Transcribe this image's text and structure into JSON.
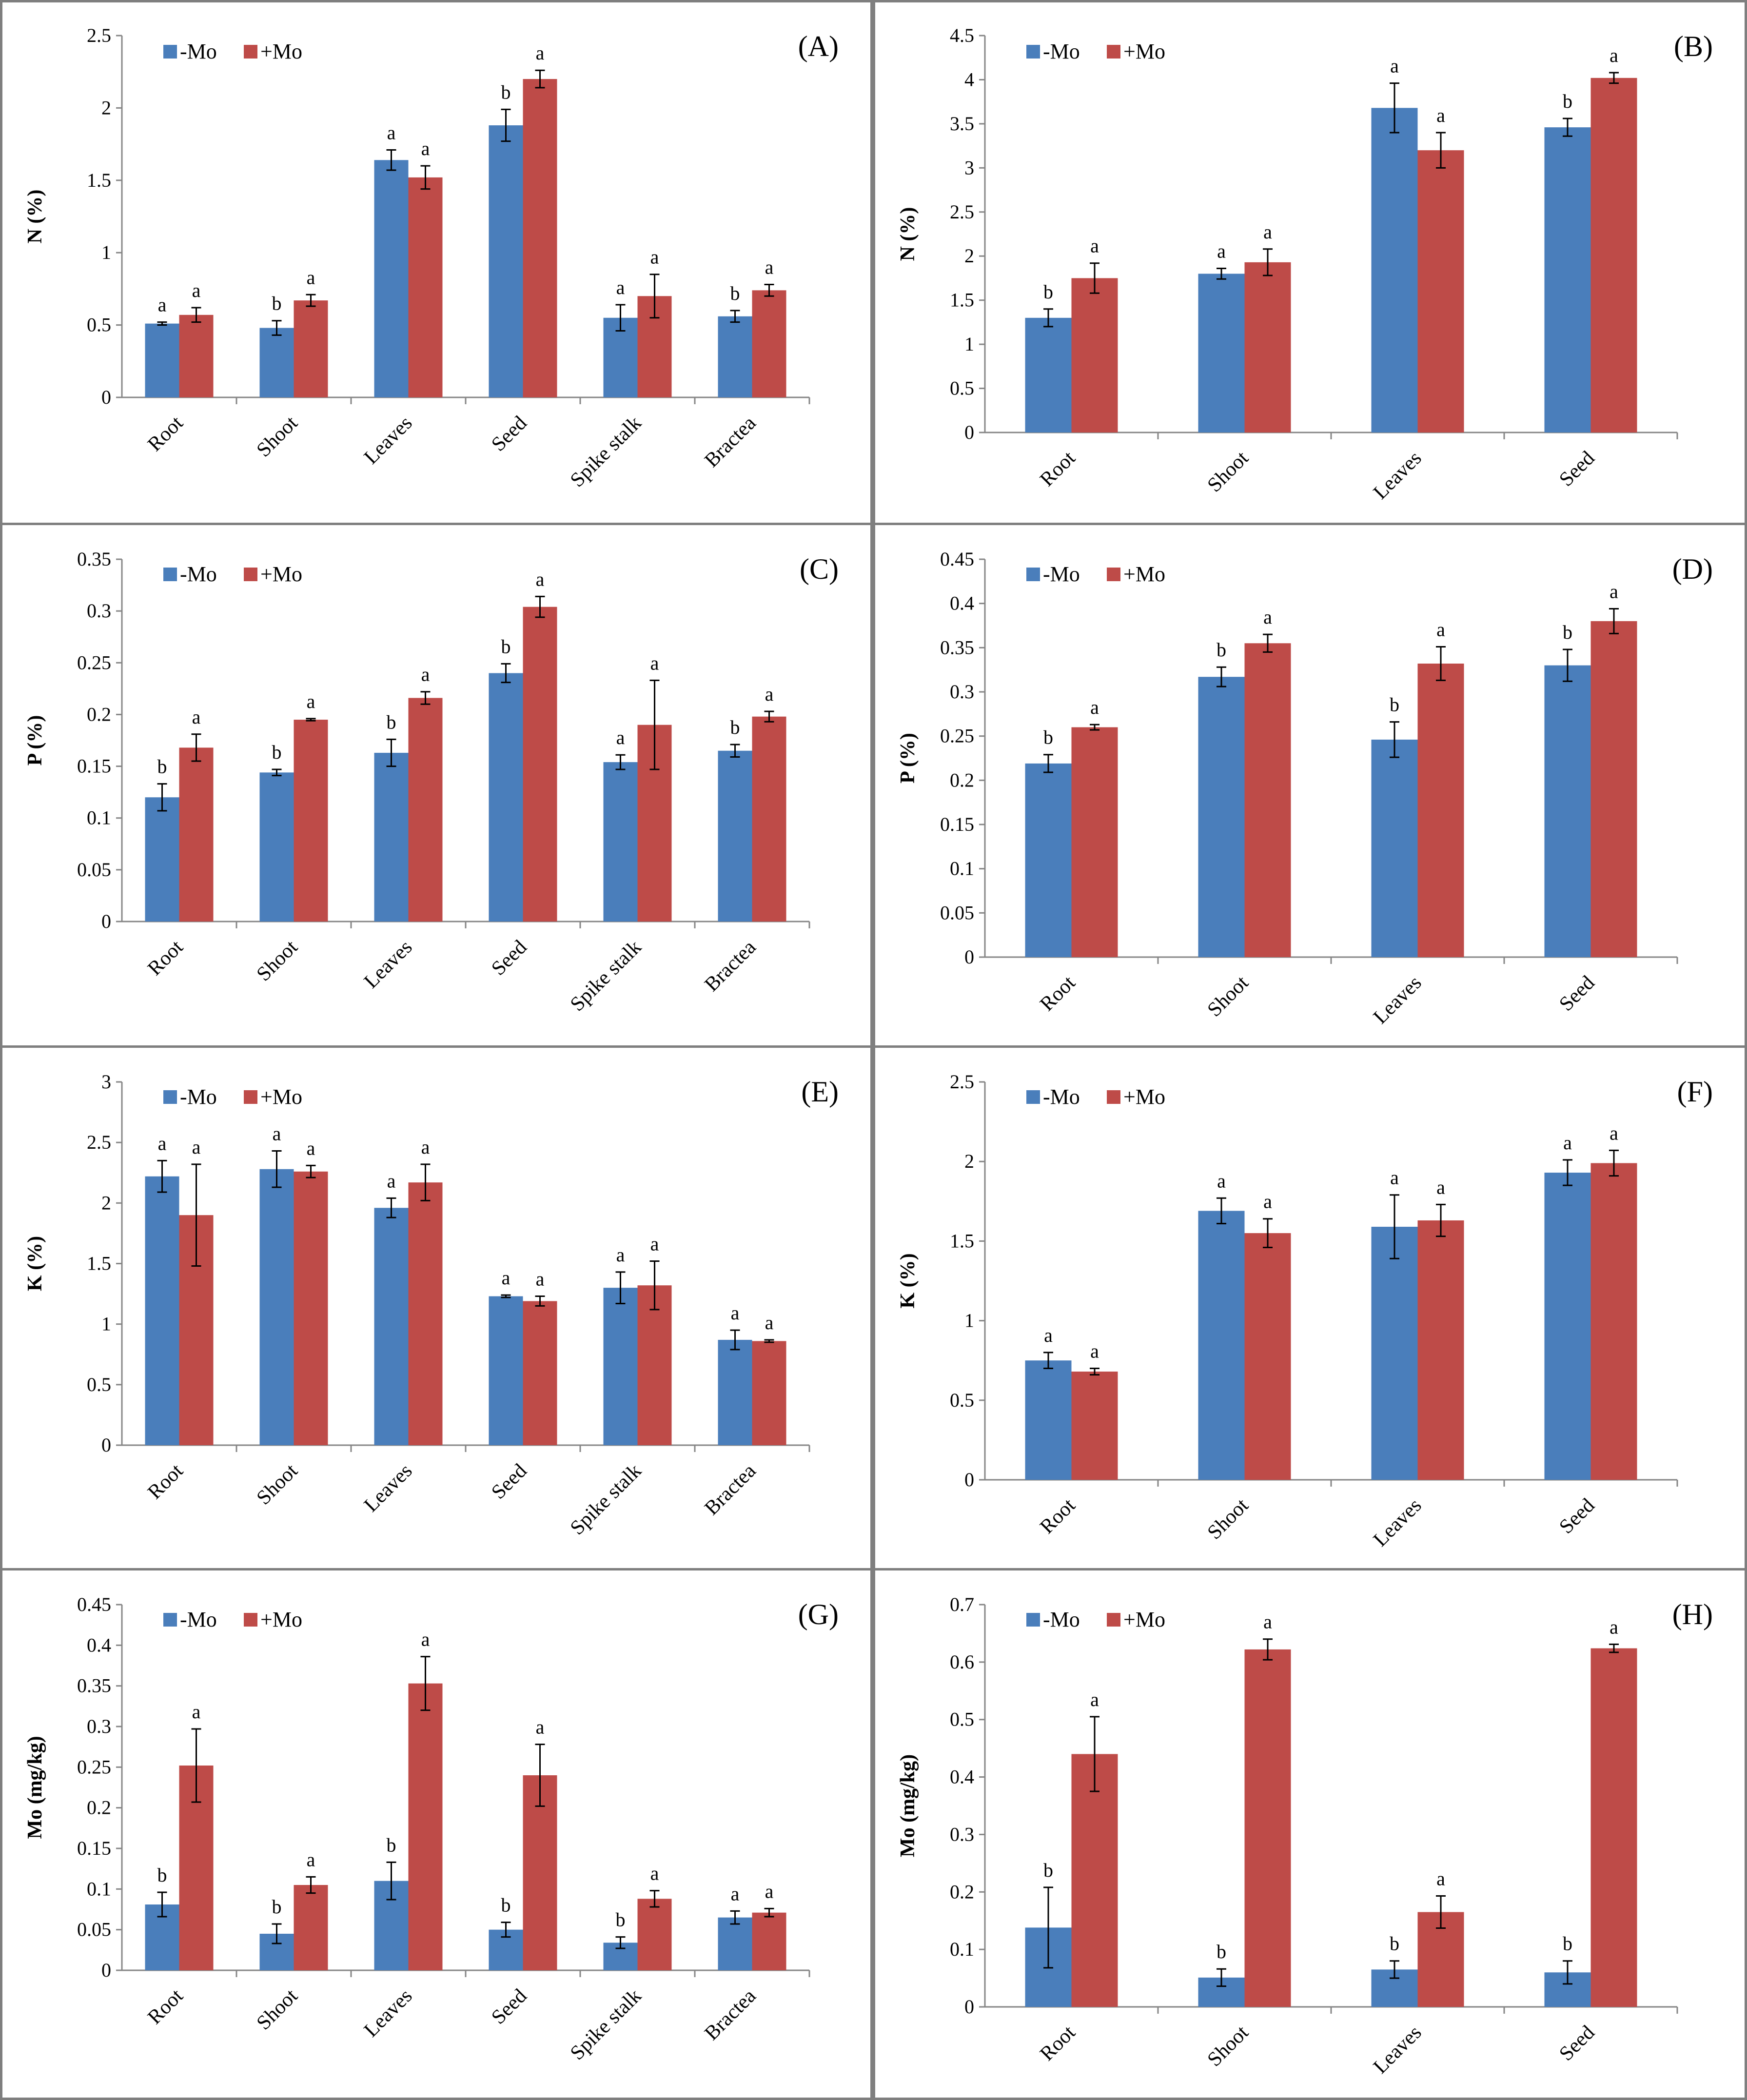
{
  "colors": {
    "minus_mo": "#4a7ebb",
    "plus_mo": "#be4b48",
    "border": "#7f7f7f",
    "axis": "#868686"
  },
  "legend": {
    "minus": "-Mo",
    "plus": "+Mo"
  },
  "chart_data": [
    {
      "id": "A",
      "panel_label": "(A)",
      "type": "bar",
      "ylabel": "N (%)",
      "ylim": [
        0,
        2.5
      ],
      "yticks": [
        "0",
        "0.5",
        "1",
        "1.5",
        "2",
        "2.5"
      ],
      "categories": [
        "Root",
        "Shoot",
        "Leaves",
        "Seed",
        "Spike stalk",
        "Bractea"
      ],
      "series": [
        {
          "name": "-Mo",
          "values": [
            0.51,
            0.48,
            1.64,
            1.88,
            0.55,
            0.56
          ],
          "errors": [
            0.01,
            0.05,
            0.07,
            0.11,
            0.09,
            0.04
          ],
          "letters": [
            "a",
            "b",
            "a",
            "b",
            "a",
            "b"
          ]
        },
        {
          "name": "+Mo",
          "values": [
            0.57,
            0.67,
            1.52,
            2.2,
            0.7,
            0.74
          ],
          "errors": [
            0.05,
            0.04,
            0.08,
            0.06,
            0.15,
            0.04
          ],
          "letters": [
            "a",
            "a",
            "a",
            "a",
            "a",
            "a"
          ]
        }
      ]
    },
    {
      "id": "B",
      "panel_label": "(B)",
      "type": "bar",
      "ylabel": "N (%)",
      "ylim": [
        0,
        4.5
      ],
      "yticks": [
        "0",
        "0.5",
        "1",
        "1.5",
        "2",
        "2.5",
        "3",
        "3.5",
        "4",
        "4.5"
      ],
      "categories": [
        "Root",
        "Shoot",
        "Leaves",
        "Seed"
      ],
      "series": [
        {
          "name": "-Mo",
          "values": [
            1.3,
            1.8,
            3.68,
            3.46
          ],
          "errors": [
            0.1,
            0.06,
            0.28,
            0.1
          ],
          "letters": [
            "b",
            "a",
            "a",
            "b"
          ]
        },
        {
          "name": "+Mo",
          "values": [
            1.75,
            1.93,
            3.2,
            4.02
          ],
          "errors": [
            0.17,
            0.15,
            0.2,
            0.06
          ],
          "letters": [
            "a",
            "a",
            "a",
            "a"
          ]
        }
      ]
    },
    {
      "id": "C",
      "panel_label": "(C)",
      "type": "bar",
      "ylabel": "P (%)",
      "ylim": [
        0,
        0.35
      ],
      "yticks": [
        "0",
        "0.05",
        "0.1",
        "0.15",
        "0.2",
        "0.25",
        "0.3",
        "0.35"
      ],
      "categories": [
        "Root",
        "Shoot",
        "Leaves",
        "Seed",
        "Spike stalk",
        "Bractea"
      ],
      "series": [
        {
          "name": "-Mo",
          "values": [
            0.12,
            0.144,
            0.163,
            0.24,
            0.154,
            0.165
          ],
          "errors": [
            0.013,
            0.003,
            0.013,
            0.009,
            0.007,
            0.006
          ],
          "letters": [
            "b",
            "b",
            "b",
            "b",
            "a",
            "b"
          ]
        },
        {
          "name": "+Mo",
          "values": [
            0.168,
            0.195,
            0.216,
            0.304,
            0.19,
            0.198
          ],
          "errors": [
            0.013,
            0.001,
            0.006,
            0.01,
            0.043,
            0.005
          ],
          "letters": [
            "a",
            "a",
            "a",
            "a",
            "a",
            "a"
          ]
        }
      ]
    },
    {
      "id": "D",
      "panel_label": "(D)",
      "type": "bar",
      "ylabel": "P (%)",
      "ylim": [
        0,
        0.45
      ],
      "yticks": [
        "0",
        "0.05",
        "0.1",
        "0.15",
        "0.2",
        "0.25",
        "0.3",
        "0.35",
        "0.4",
        "0.45"
      ],
      "categories": [
        "Root",
        "Shoot",
        "Leaves",
        "Seed"
      ],
      "series": [
        {
          "name": "-Mo",
          "values": [
            0.219,
            0.317,
            0.246,
            0.33
          ],
          "errors": [
            0.01,
            0.011,
            0.02,
            0.018
          ],
          "letters": [
            "b",
            "b",
            "b",
            "b"
          ]
        },
        {
          "name": "+Mo",
          "values": [
            0.26,
            0.355,
            0.332,
            0.38
          ],
          "errors": [
            0.003,
            0.01,
            0.019,
            0.014
          ],
          "letters": [
            "a",
            "a",
            "a",
            "a"
          ]
        }
      ]
    },
    {
      "id": "E",
      "panel_label": "(E)",
      "type": "bar",
      "ylabel": "K (%)",
      "ylim": [
        0,
        3
      ],
      "yticks": [
        "0",
        "0.5",
        "1",
        "1.5",
        "2",
        "2.5",
        "3"
      ],
      "categories": [
        "Root",
        "Shoot",
        "Leaves",
        "Seed",
        "Spike stalk",
        "Bractea"
      ],
      "series": [
        {
          "name": "-Mo",
          "values": [
            2.22,
            2.28,
            1.96,
            1.23,
            1.3,
            0.87
          ],
          "errors": [
            0.13,
            0.15,
            0.08,
            0.01,
            0.13,
            0.08
          ],
          "letters": [
            "a",
            "a",
            "a",
            "a",
            "a",
            "a"
          ]
        },
        {
          "name": "+Mo",
          "values": [
            1.9,
            2.26,
            2.17,
            1.19,
            1.32,
            0.86
          ],
          "errors": [
            0.42,
            0.05,
            0.15,
            0.04,
            0.2,
            0.01
          ],
          "letters": [
            "a",
            "a",
            "a",
            "a",
            "a",
            "a"
          ]
        }
      ]
    },
    {
      "id": "F",
      "panel_label": "(F)",
      "type": "bar",
      "ylabel": "K (%)",
      "ylim": [
        0,
        2.5
      ],
      "yticks": [
        "0",
        "0.5",
        "1",
        "1.5",
        "2",
        "2.5"
      ],
      "categories": [
        "Root",
        "Shoot",
        "Leaves",
        "Seed"
      ],
      "series": [
        {
          "name": "-Mo",
          "values": [
            0.75,
            1.69,
            1.59,
            1.93
          ],
          "errors": [
            0.05,
            0.08,
            0.2,
            0.08
          ],
          "letters": [
            "a",
            "a",
            "a",
            "a"
          ]
        },
        {
          "name": "+Mo",
          "values": [
            0.68,
            1.55,
            1.63,
            1.99
          ],
          "errors": [
            0.02,
            0.09,
            0.1,
            0.08
          ],
          "letters": [
            "a",
            "a",
            "a",
            "a"
          ]
        }
      ]
    },
    {
      "id": "G",
      "panel_label": "(G)",
      "type": "bar",
      "ylabel": "Mo (mg/kg)",
      "ylim": [
        0,
        0.45
      ],
      "yticks": [
        "0",
        "0.05",
        "0.1",
        "0.15",
        "0.2",
        "0.25",
        "0.3",
        "0.35",
        "0.4",
        "0.45"
      ],
      "categories": [
        "Root",
        "Shoot",
        "Leaves",
        "Seed",
        "Spike stalk",
        "Bractea"
      ],
      "series": [
        {
          "name": "-Mo",
          "values": [
            0.081,
            0.045,
            0.11,
            0.05,
            0.034,
            0.065
          ],
          "errors": [
            0.015,
            0.012,
            0.023,
            0.009,
            0.007,
            0.008
          ],
          "letters": [
            "b",
            "b",
            "b",
            "b",
            "b",
            "a"
          ]
        },
        {
          "name": "+Mo",
          "values": [
            0.252,
            0.105,
            0.353,
            0.24,
            0.088,
            0.071
          ],
          "errors": [
            0.045,
            0.01,
            0.033,
            0.038,
            0.01,
            0.005
          ],
          "letters": [
            "a",
            "a",
            "a",
            "a",
            "a",
            "a"
          ]
        }
      ]
    },
    {
      "id": "H",
      "panel_label": "(H)",
      "type": "bar",
      "ylabel": "Mo (mg/kg)",
      "ylim": [
        0,
        0.7
      ],
      "yticks": [
        "0",
        "0.1",
        "0.2",
        "0.3",
        "0.4",
        "0.5",
        "0.6",
        "0.7"
      ],
      "categories": [
        "Root",
        "Shoot",
        "Leaves",
        "Seed"
      ],
      "series": [
        {
          "name": "-Mo",
          "values": [
            0.138,
            0.051,
            0.065,
            0.06
          ],
          "errors": [
            0.07,
            0.015,
            0.015,
            0.02
          ],
          "letters": [
            "b",
            "b",
            "b",
            "b"
          ]
        },
        {
          "name": "+Mo",
          "values": [
            0.44,
            0.622,
            0.165,
            0.624
          ],
          "errors": [
            0.065,
            0.018,
            0.028,
            0.007
          ],
          "letters": [
            "a",
            "a",
            "a",
            "a"
          ]
        }
      ]
    }
  ]
}
